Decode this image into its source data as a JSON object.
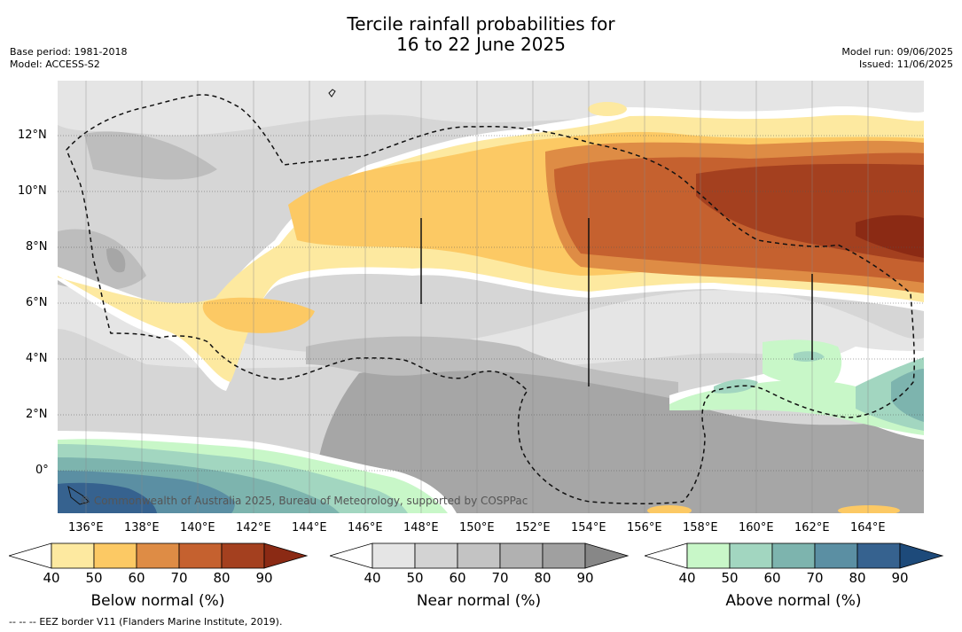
{
  "header": {
    "title_line1": "Tercile rainfall probabilities for",
    "title_line2": "16 to 22 June 2025",
    "base_period": "Base period: 1981-2018",
    "model": "Model: ACCESS-S2",
    "model_run": "Model run: 09/06/2025",
    "issued": "Issued: 11/06/2025"
  },
  "map": {
    "lon_ticks": [
      "136°E",
      "138°E",
      "140°E",
      "142°E",
      "144°E",
      "146°E",
      "148°E",
      "150°E",
      "152°E",
      "154°E",
      "156°E",
      "158°E",
      "160°E",
      "162°E",
      "164°E"
    ],
    "lat_ticks": [
      "12°N",
      "10°N",
      "8°N",
      "6°N",
      "4°N",
      "2°N",
      "0°"
    ],
    "copyright": "© Commonwealth of Australia 2025, Bureau of Meteorology, supported by COSPPac"
  },
  "colorbars": [
    {
      "label": "Below normal (%)",
      "ticks": [
        "40",
        "50",
        "60",
        "70",
        "80",
        "90"
      ],
      "colors": [
        "#ffffff",
        "#fde9a0",
        "#fcc964",
        "#de8c45",
        "#c5612f",
        "#a4401f",
        "#8b2a14"
      ]
    },
    {
      "label": "Near normal (%)",
      "ticks": [
        "40",
        "50",
        "60",
        "70",
        "80",
        "90"
      ],
      "colors": [
        "#ffffff",
        "#e5e5e5",
        "#d3d3d3",
        "#c3c3c3",
        "#b1b1b1",
        "#a0a0a0",
        "#878787"
      ]
    },
    {
      "label": "Above normal (%)",
      "ticks": [
        "40",
        "50",
        "60",
        "70",
        "80",
        "90"
      ],
      "colors": [
        "#ffffff",
        "#c8f7c8",
        "#a2d6c0",
        "#7db4ae",
        "#5b8fa3",
        "#36628f",
        "#1d4a7a"
      ]
    }
  ],
  "footer": {
    "legend_symbol": "-- -- --",
    "eez_note": "EEZ border V11 (Flanders Marine Institute, 2019)."
  }
}
